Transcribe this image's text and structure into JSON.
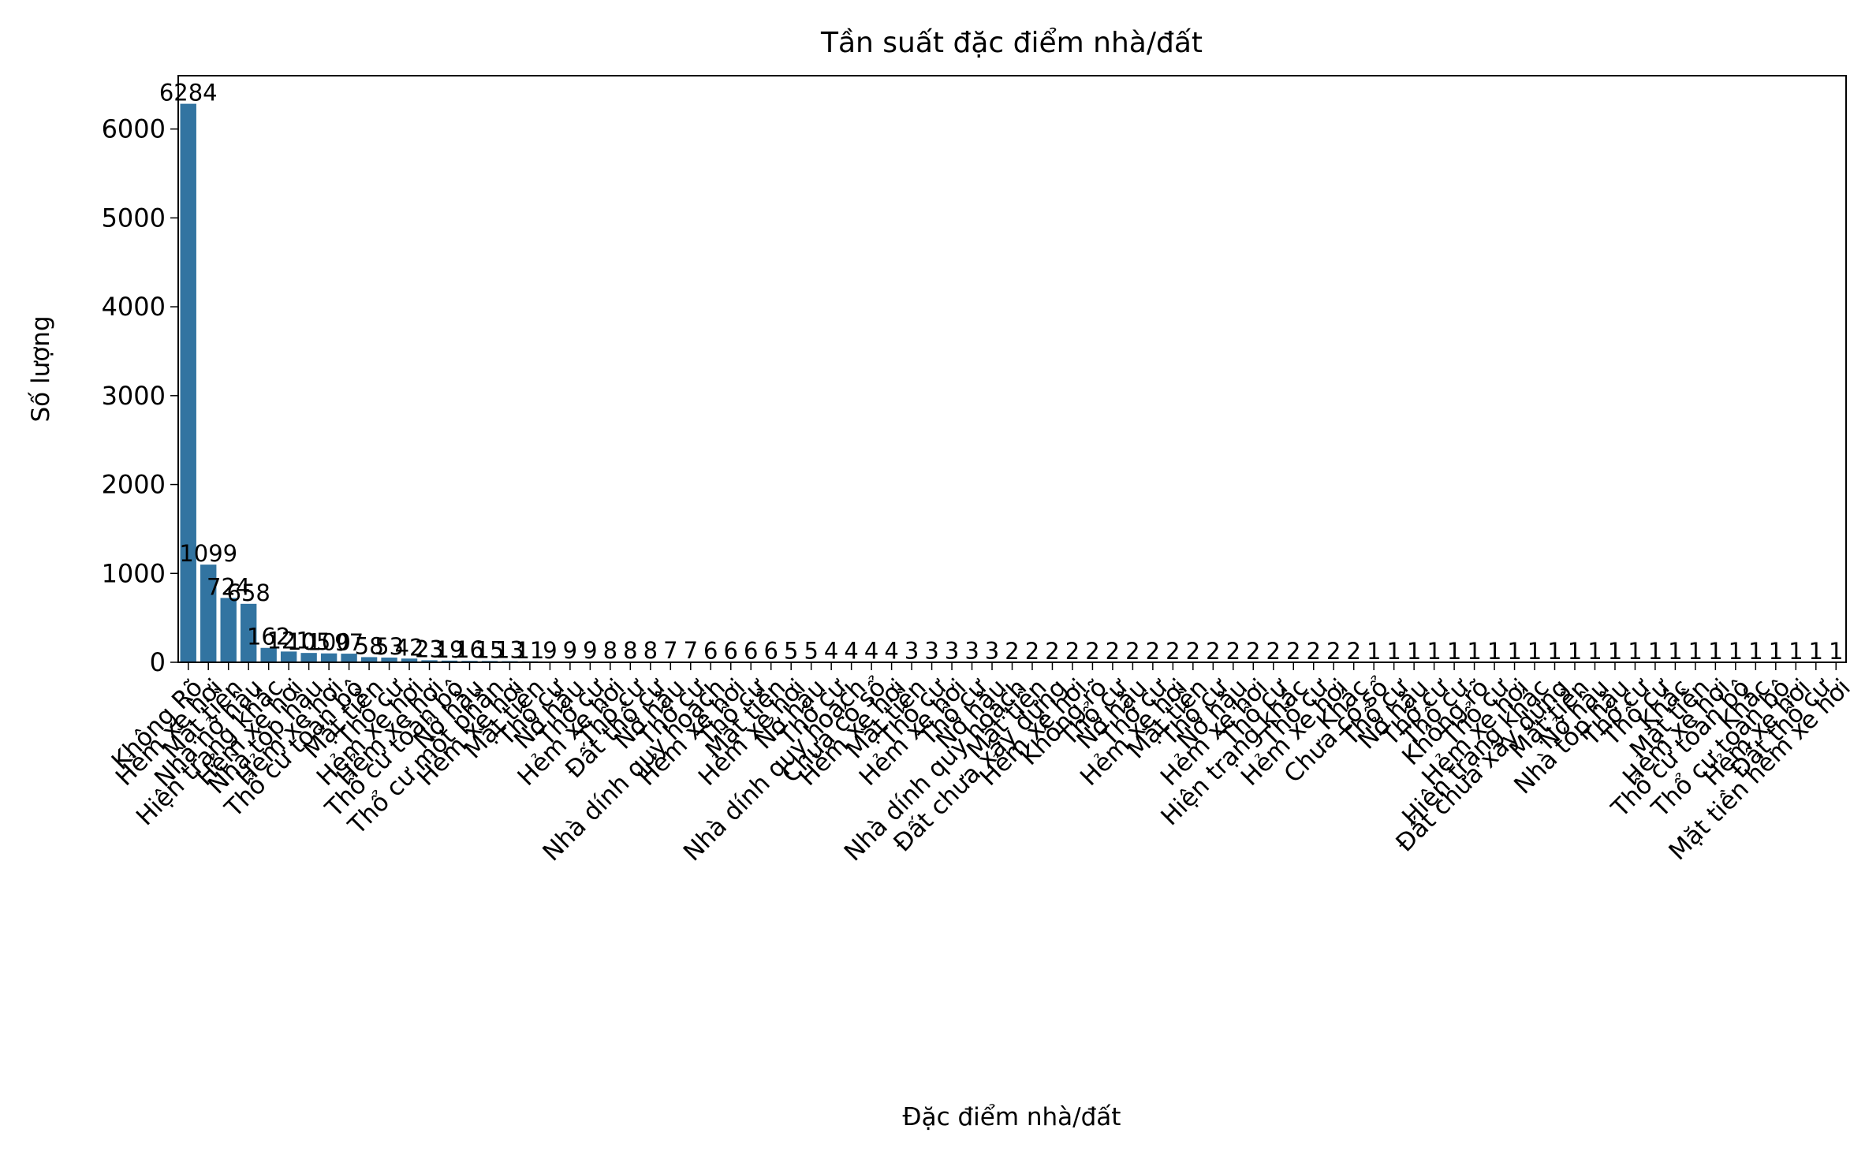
{
  "chart_data": {
    "type": "bar",
    "title": "Tần suất đặc điểm nhà/đất",
    "xlabel": "Đặc điểm nhà/đất",
    "ylabel": "Số lượng",
    "ylim": [
      0,
      6600
    ],
    "yticks": [
      0,
      1000,
      2000,
      3000,
      4000,
      5000,
      6000
    ],
    "grid": false,
    "legend": "none",
    "bar_color": "#3274a1",
    "categories": [
      "Không Rõ",
      "Hẻm xe hơi",
      "Mặt tiền",
      "Nhà nở hậu",
      "Hiện trạng khác",
      "Hẻm xe hơi",
      "Nhà tóp hậu",
      "Hẻm xe hơi",
      "Thổ cư toàn bộ",
      "Mặt tiền",
      "Thổ cư",
      "Hẻm xe hơi",
      "Hẻm xe hơi",
      "Thổ cư toàn bộ",
      "Nở hậu",
      "Thổ cư một phần",
      "Hẻm xe hơi",
      "Mặt tiền",
      "Thổ cư",
      "Nở hậu",
      "Thổ cư",
      "Hẻm xe hơi",
      "Thổ cư",
      "Đất thổ cư",
      "Nở hậu",
      "Thổ cư",
      "Nhà dính quy hoạch",
      "Hẻm xe hơi",
      "Thổ cư",
      "Mặt tiền",
      "Hẻm xe hơi",
      "Nở hậu",
      "Thổ cư",
      "Nhà dính quy hoạch",
      "Chưa có sổ",
      "Hẻm xe hơi",
      "Mặt tiền",
      "Thổ cư",
      "Hẻm xe hơi",
      "Thổ cư",
      "Nở hậu",
      "Nhà dính quy hoạch",
      "Mặt tiền",
      "Đất chưa xây dựng",
      "Hẻm xe hơi",
      "Không rõ",
      "Thổ cư",
      "Nở hậu",
      "Thổ cư",
      "Hẻm xe hơi",
      "Mặt tiền",
      "Thổ cư",
      "Nở hậu",
      "Hẻm xe hơi",
      "Thổ cư",
      "Hiện trạng khác",
      "Thổ cư",
      "Hẻm xe hơi",
      "Khác",
      "Chưa có sổ",
      "Thổ cư",
      "Nở hậu",
      "Thổ cư",
      "Thổ cư",
      "Không rõ",
      "Thổ cư",
      "Hẻm xe hơi",
      "Hiện trạng khác",
      "Đất chưa xây dựng",
      "Mặt tiền",
      "Nở hậu",
      "Nhà tóp hậu",
      "Thổ cư",
      "Thổ cư",
      "Khác",
      "Mặt tiền",
      "Hẻm xe hơi",
      "Thổ cư toàn bộ",
      "Khác",
      "Thổ cư toàn bộ",
      "Hẻm xe hơi",
      "Đất thổ cư",
      "Mặt tiền hẻm xe hơi"
    ],
    "values": [
      6284,
      1099,
      724,
      658,
      162,
      121,
      105,
      100,
      97,
      58,
      53,
      42,
      23,
      19,
      16,
      15,
      13,
      11,
      9,
      9,
      9,
      8,
      8,
      8,
      7,
      7,
      6,
      6,
      6,
      6,
      5,
      5,
      4,
      4,
      4,
      4,
      3,
      3,
      3,
      3,
      3,
      2,
      2,
      2,
      2,
      2,
      2,
      2,
      2,
      2,
      2,
      2,
      2,
      2,
      2,
      2,
      2,
      2,
      2,
      1,
      1,
      1,
      1,
      1,
      1,
      1,
      1,
      1,
      1,
      1,
      1,
      1,
      1,
      1,
      1,
      1,
      1,
      1,
      1,
      1,
      1,
      1,
      1
    ]
  }
}
